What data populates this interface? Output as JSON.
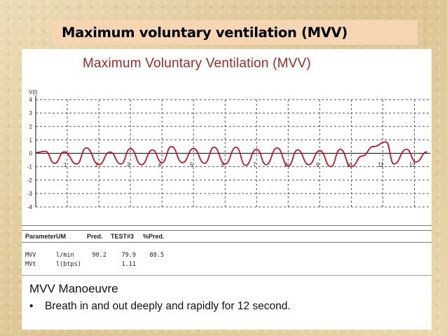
{
  "slide_title": "Maximum voluntary ventilation (MVV)",
  "chart_title": "Maximum Voluntary Ventilation (MVV)",
  "colors": {
    "trace": "#c0182a",
    "title_text": "#9a2a2a",
    "title_bar": "#f5d5b2"
  },
  "chart_data": {
    "type": "line",
    "ylabel": "V(l)",
    "xlabel": "",
    "ylim": [
      -4,
      4
    ],
    "xlim": [
      0,
      12.5
    ],
    "y_ticks": [
      "4",
      "3",
      "2",
      "1",
      "0",
      "-1",
      "-2",
      "-3",
      "-4"
    ],
    "x_ticks": [
      "1",
      "2",
      "3",
      "4",
      "5",
      "6",
      "7",
      "8",
      "9",
      "10",
      "11",
      "12"
    ],
    "grid": true,
    "series": [
      {
        "values_x": [
          0,
          0.3,
          0.6,
          0.9,
          1.3,
          1.6,
          2.0,
          2.35,
          2.7,
          3.0,
          3.35,
          3.7,
          4.0,
          4.3,
          4.65,
          5.0,
          5.35,
          5.65,
          6.0,
          6.35,
          6.65,
          7.0,
          7.3,
          7.65,
          8.0,
          8.3,
          8.65,
          9.0,
          9.35,
          9.65,
          10.0,
          10.35,
          10.7,
          11.1,
          11.35,
          11.75,
          12.05,
          12.4
        ],
        "values_y": [
          0.05,
          0.15,
          -0.75,
          0.1,
          -0.8,
          0.4,
          -0.85,
          0.1,
          -0.8,
          0.35,
          -0.85,
          0.25,
          -0.7,
          0.5,
          -0.7,
          0.35,
          -0.75,
          0.45,
          -0.8,
          0.45,
          -0.9,
          0.3,
          -0.85,
          0.4,
          -0.95,
          0.25,
          -0.85,
          0.2,
          -1.0,
          0.3,
          -1.0,
          -0.2,
          0.5,
          0.85,
          -0.8,
          0.3,
          -0.65,
          0.1
        ]
      }
    ]
  },
  "table": {
    "headers": [
      "Parameter",
      "UM",
      "Pred.",
      "TEST#3",
      "%Pred."
    ],
    "rows": [
      [
        "MVV",
        "l/min",
        "90.2",
        "79.9",
        "88.5"
      ],
      [
        "MVt",
        "l(btps)",
        "",
        "1.11",
        ""
      ]
    ]
  },
  "notes": {
    "heading": "MVV Manoeuvre",
    "items": [
      "Breath in and out deeply and rapidly for 12 second."
    ]
  }
}
